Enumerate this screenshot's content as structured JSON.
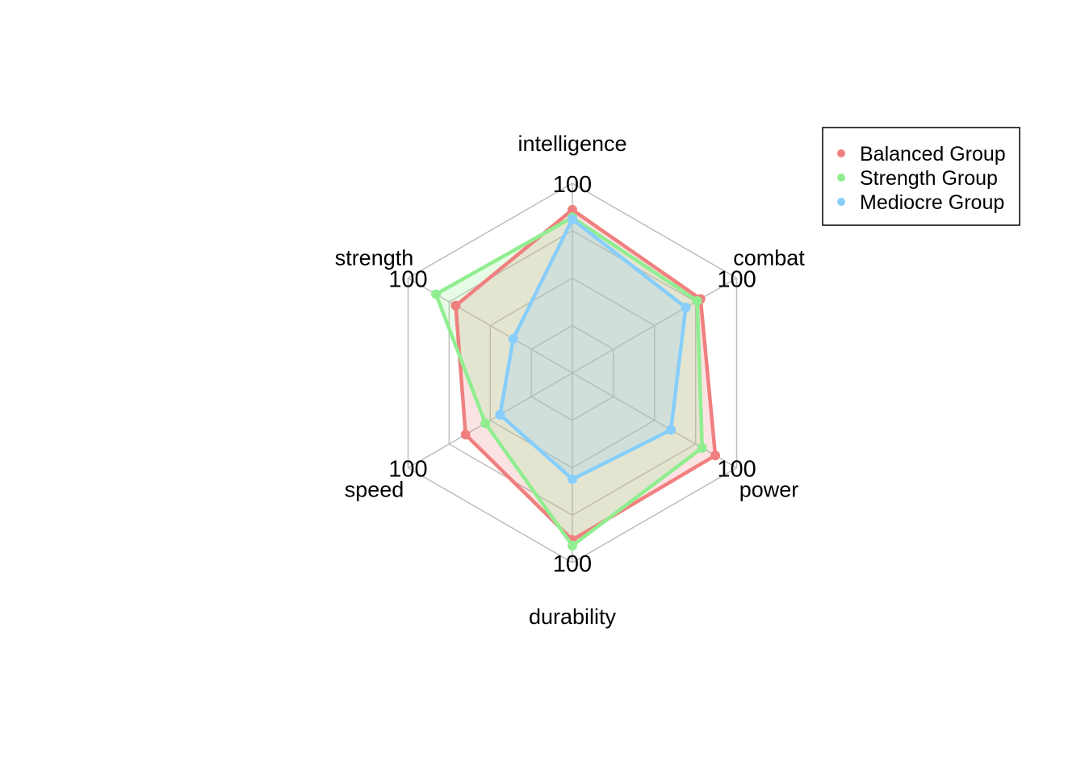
{
  "chart_data": {
    "type": "radar",
    "axes": [
      "intelligence",
      "combat",
      "power",
      "durability",
      "speed",
      "strength"
    ],
    "axis_max_label": "100",
    "range": [
      0,
      100
    ],
    "grid_levels": 4,
    "series": [
      {
        "name": "Balanced Group",
        "color": "#F08080",
        "values": [
          86,
          78,
          87,
          88,
          65,
          71
        ]
      },
      {
        "name": "Strength Group",
        "color": "#90EE90",
        "values": [
          82,
          76,
          79,
          91,
          53,
          83
        ]
      },
      {
        "name": "Mediocre Group",
        "color": "#87CEFA",
        "values": [
          81,
          69,
          60,
          56,
          44,
          36
        ]
      }
    ],
    "legend": {
      "position": "top-right"
    },
    "grid": true
  }
}
